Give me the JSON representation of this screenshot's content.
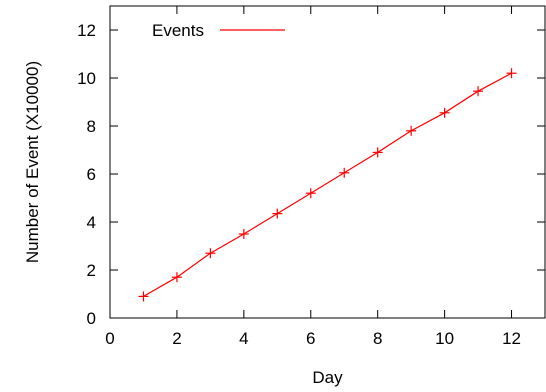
{
  "chart_data": {
    "type": "line",
    "xlabel": "Day",
    "ylabel": "Number of Event (X10000)",
    "xlim": [
      0,
      13
    ],
    "ylim": [
      0,
      13
    ],
    "xticks": [
      0,
      2,
      4,
      6,
      8,
      10,
      12
    ],
    "yticks": [
      0,
      2,
      4,
      6,
      8,
      10,
      12
    ],
    "grid": false,
    "legend_position": "top-left",
    "series": [
      {
        "name": "Events",
        "color": "#ff0000",
        "marker": "plus",
        "x": [
          1,
          2,
          3,
          4,
          5,
          6,
          7,
          8,
          9,
          10,
          11,
          12
        ],
        "y": [
          0.9,
          1.7,
          2.7,
          3.5,
          4.35,
          5.2,
          6.05,
          6.9,
          7.8,
          8.55,
          9.45,
          10.2
        ]
      }
    ]
  }
}
